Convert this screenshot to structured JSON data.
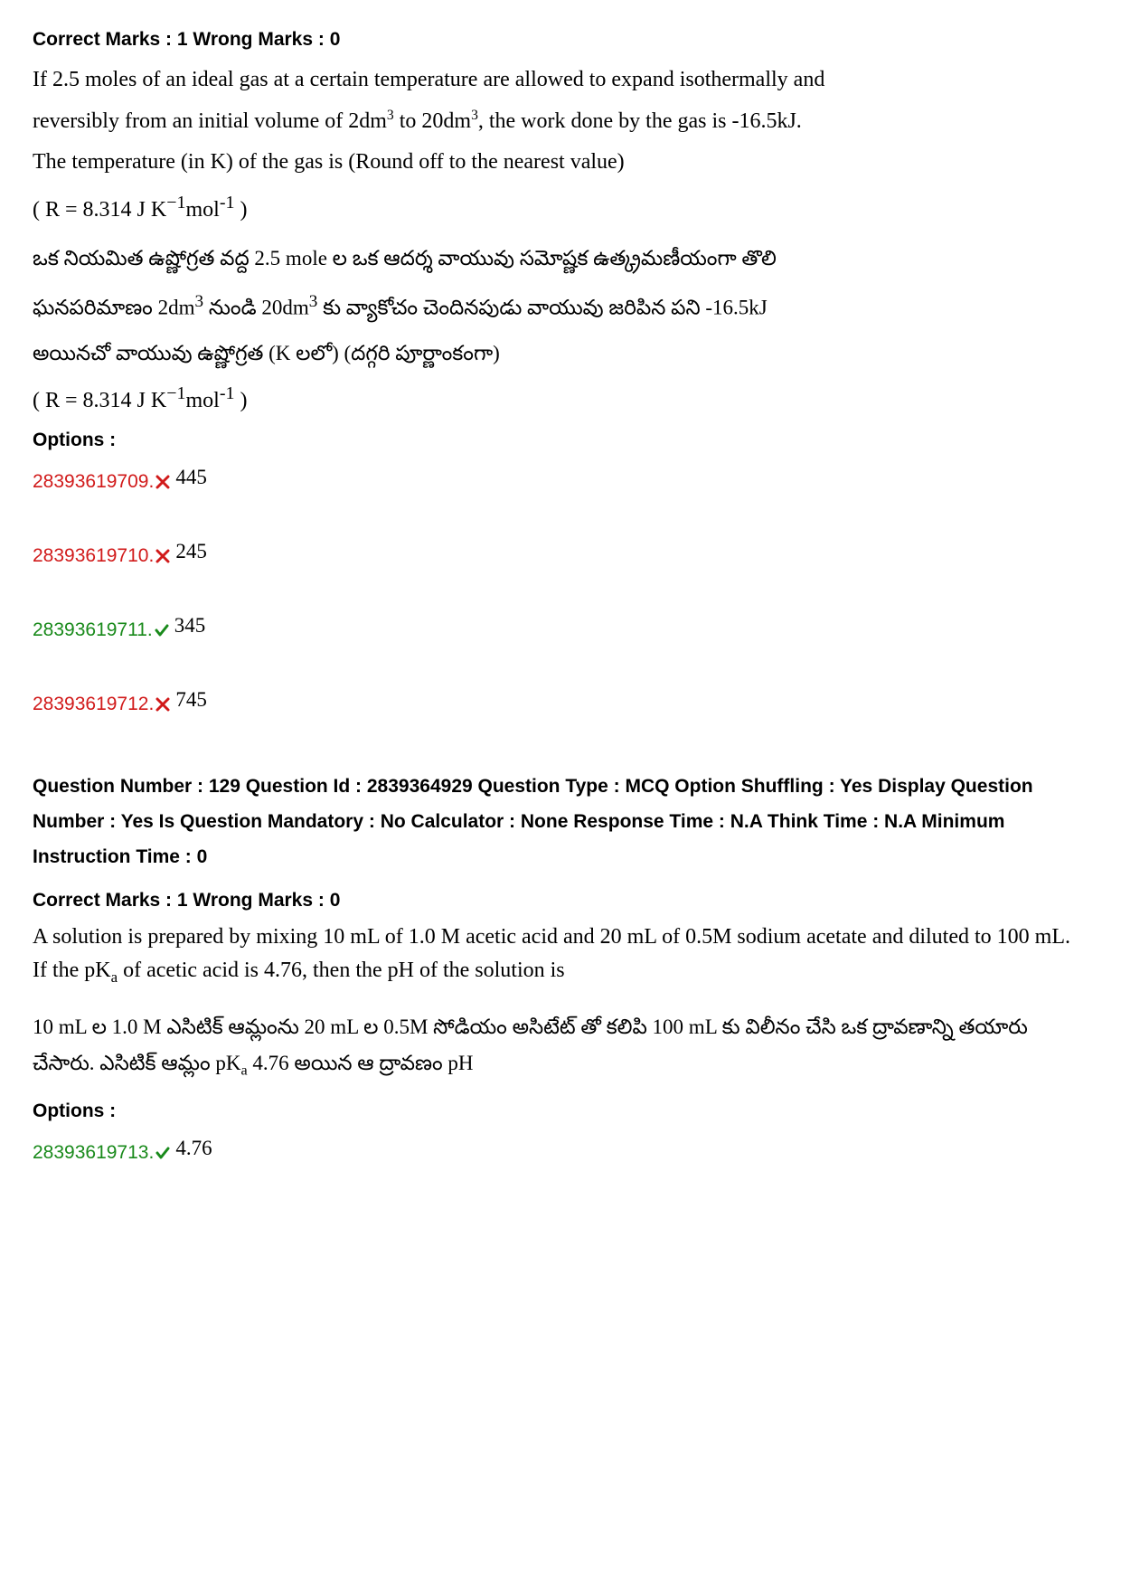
{
  "q1": {
    "marks_line": "Correct Marks : 1 Wrong Marks : 0",
    "line1_pre": "If 2.5 moles of an ideal gas at a certain temperature are allowed to expand isothermally and",
    "line2_a": "reversibly from an initial volume of 2dm",
    "line2_b": " to 20dm",
    "line2_c": ", the work done by the gas is -16.5kJ.",
    "line3": "The temperature (in K) of the gas is (Round off to the nearest value)",
    "formula_a": "( R = 8.314 J K",
    "formula_sup1": "−1",
    "formula_b": "mol",
    "formula_sup2": "-1",
    "formula_c": "  )",
    "telugu1": "ఒక నియమిత ఉష్ణోగ్రత వద్ద 2.5 mole ల ఒక ఆదర్శ వాయువు సమోష్ణక ఉత్క్రమణీయంగా  తొలి",
    "telugu2_a": "ఘనపరిమాణం 2dm",
    "telugu2_b": " నుండి 20dm",
    "telugu2_c": " కు వ్యాకోచం చెందినపుడు వాయువు జరిపిన పని -16.5kJ",
    "telugu3": "అయినచో వాయువు ఉష్ణోగ్రత (K లలో) (దగ్గరి పూర్ణాంకంగా)",
    "formula2_a": "( R = 8.314 J K",
    "formula2_b": "mol",
    "formula2_c": "  )",
    "options_heading": "Options :",
    "options": [
      {
        "id": "28393619709.",
        "value": "445",
        "correct": false
      },
      {
        "id": "28393619710.",
        "value": "245",
        "correct": false
      },
      {
        "id": "28393619711.",
        "value": "345",
        "correct": true
      },
      {
        "id": "28393619712.",
        "value": "745",
        "correct": false
      }
    ]
  },
  "q2": {
    "meta": "Question Number : 129 Question Id : 2839364929 Question Type : MCQ Option Shuffling : Yes Display Question Number : Yes Is Question Mandatory : No Calculator : None Response Time : N.A Think Time : N.A Minimum Instruction Time : 0",
    "marks_line": "Correct Marks : 1 Wrong Marks : 0",
    "text_a": "A solution is prepared by mixing 10 mL of 1.0 M acetic acid and 20 mL of 0.5M sodium acetate and diluted to 100 mL. If the pK",
    "text_b": " of acetic acid is 4.76, then the pH of the solution is",
    "telugu_a": "10 mL ల 1.0 M ఎసిటిక్ ఆమ్లంను 20 mL ల 0.5M సోడియం అసిటేట్ తో కలిపి 100 mL కు విలీనం చేసి ఒక ద్రావణాన్ని తయారు చేసారు.  ఎసిటిక్ ఆమ్లం pK",
    "telugu_b": " 4.76 అయిన ఆ ద్రావణం pH",
    "options_heading": "Options :",
    "options": [
      {
        "id": "28393619713.",
        "value": "4.76",
        "correct": true
      }
    ]
  },
  "colors": {
    "wrong": "#d11a1a",
    "correct": "#198a1b"
  }
}
